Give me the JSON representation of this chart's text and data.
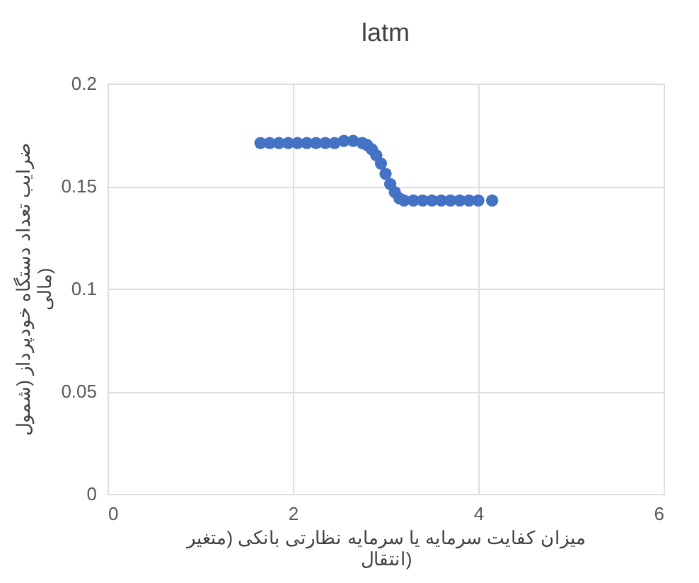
{
  "chart_data": {
    "type": "scatter",
    "title": "latm",
    "xlabel": "میزان کفایت سرمایه یا سرمایه نظارتی بانکی (متغیر انتقال)",
    "ylabel": "ضرایب تعداد دستگاه خودپرداز (شمول مالی)",
    "x": [
      1.65,
      1.75,
      1.85,
      1.95,
      2.05,
      2.15,
      2.25,
      2.35,
      2.45,
      2.55,
      2.65,
      2.75,
      2.8,
      2.85,
      2.9,
      2.95,
      3.0,
      3.05,
      3.1,
      3.15,
      3.2,
      3.3,
      3.4,
      3.5,
      3.6,
      3.7,
      3.8,
      3.9,
      4.0,
      4.15
    ],
    "series": [
      {
        "color": "#4472c4",
        "values": [
          0.171,
          0.171,
          0.171,
          0.171,
          0.171,
          0.171,
          0.171,
          0.171,
          0.171,
          0.172,
          0.172,
          0.171,
          0.17,
          0.168,
          0.165,
          0.161,
          0.156,
          0.151,
          0.147,
          0.144,
          0.143,
          0.143,
          0.143,
          0.143,
          0.143,
          0.143,
          0.143,
          0.143,
          0.143,
          0.143
        ]
      }
    ],
    "xlim": [
      0,
      6
    ],
    "xticks": [
      0,
      2,
      4,
      6
    ],
    "ylim": [
      0,
      0.2
    ],
    "yticks": [
      0,
      0.05,
      0.1,
      0.15,
      0.2
    ],
    "grid": true,
    "marker": "circle"
  }
}
